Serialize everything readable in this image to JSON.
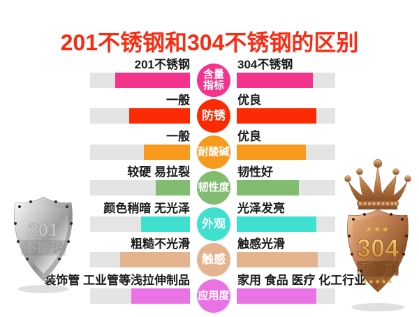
{
  "title": {
    "text": "201不锈钢和304不锈钢的区别"
  },
  "palette": {
    "title_red": "#fb2b12",
    "track_gray": "#e4e4e4",
    "silver": "#c6c6c6",
    "bronze": "#b3713d",
    "gold": "#f1b93f"
  },
  "comparison": {
    "rows": [
      {
        "metric": "含量指标",
        "metric_lines": [
          "含量",
          "指标"
        ],
        "color": "#f4338c",
        "left_label": "201不锈钢",
        "right_label": "304不锈钢",
        "left_fill_pct": 75,
        "right_fill_pct": 77
      },
      {
        "metric": "防锈",
        "metric_lines": [
          "防锈"
        ],
        "color": "#fc2a02",
        "left_label": "一般",
        "right_label": "优良",
        "left_fill_pct": 61,
        "right_fill_pct": 81
      },
      {
        "metric": "耐酸碱",
        "metric_lines": [
          "耐酸碱"
        ],
        "color": "#f79a1d",
        "left_label": "一般",
        "right_label": "优良",
        "left_fill_pct": 46,
        "right_fill_pct": 70
      },
      {
        "metric": "韧性度",
        "metric_lines": [
          "韧性度"
        ],
        "color": "#81bc70",
        "left_label": "较硬 易拉裂",
        "right_label": "韧性好",
        "left_fill_pct": 34,
        "right_fill_pct": 63
      },
      {
        "metric": "外观",
        "metric_lines": [
          "外观"
        ],
        "color": "#3fe0cf",
        "left_label": "颜色稍暗 无光泽",
        "right_label": "光泽发亮",
        "left_fill_pct": 49,
        "right_fill_pct": 81
      },
      {
        "metric": "触感",
        "metric_lines": [
          "触感"
        ],
        "color": "#e5b38d",
        "left_label": "粗糙不光滑",
        "right_label": "触感光滑",
        "left_fill_pct": 70,
        "right_fill_pct": 82
      },
      {
        "metric": "应用度",
        "metric_lines": [
          "应用度"
        ],
        "color": "#e973e5",
        "left_label": "装饰管 工业管等浅拉伸制品",
        "right_label": "家用 食品 医疗 化工行业",
        "left_fill_pct": 59,
        "right_fill_pct": 81
      }
    ]
  },
  "left_shield": {
    "number": "201",
    "label": "不锈钢"
  },
  "right_shield": {
    "number": "304",
    "label": "不锈钢",
    "stars_top": "★★★",
    "stars_bottom": "★★★★★"
  },
  "chart_data": {
    "type": "bar",
    "title": "201不锈钢和304不锈钢的区别",
    "categories": [
      "含量指标",
      "防锈",
      "耐酸碱",
      "韧性度",
      "外观",
      "触感",
      "应用度"
    ],
    "series": [
      {
        "name": "201不锈钢",
        "values": [
          75,
          61,
          46,
          34,
          49,
          70,
          59
        ],
        "labels": [
          "201不锈钢",
          "一般",
          "一般",
          "较硬 易拉裂",
          "颜色稍暗 无光泽",
          "粗糙不光滑",
          "装饰管 工业管等浅拉伸制品"
        ]
      },
      {
        "name": "304不锈钢",
        "values": [
          77,
          81,
          70,
          63,
          81,
          82,
          81
        ],
        "labels": [
          "304不锈钢",
          "优良",
          "优良",
          "韧性好",
          "光泽发亮",
          "触感光滑",
          "家用 食品 医疗 化工行业"
        ]
      }
    ],
    "ylim": [
      0,
      100
    ],
    "layout": "mirrored horizontal bars with central category bubbles",
    "legend_position": "none",
    "grid": false
  }
}
